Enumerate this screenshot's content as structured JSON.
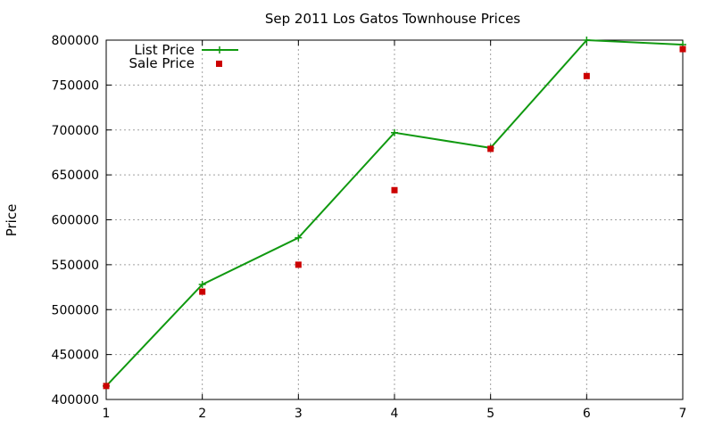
{
  "chart_data": {
    "type": "line",
    "title": "Sep 2011 Los Gatos Townhouse Prices",
    "xlabel": "",
    "ylabel": "Price",
    "xlim": [
      1,
      7
    ],
    "ylim": [
      400000,
      800000
    ],
    "x_ticks": [
      "1",
      "2",
      "3",
      "4",
      "5",
      "6",
      "7"
    ],
    "y_ticks": [
      "400000",
      "450000",
      "500000",
      "550000",
      "600000",
      "650000",
      "700000",
      "750000",
      "800000"
    ],
    "grid": true,
    "legend_position": "top-left",
    "x": [
      1,
      2,
      3,
      4,
      5,
      6,
      7
    ],
    "series": [
      {
        "name": "List Price",
        "style": "line-with-plus-markers",
        "color": "#109910",
        "values": [
          415000,
          528000,
          580000,
          697000,
          680000,
          800000,
          795000
        ]
      },
      {
        "name": "Sale Price",
        "style": "square-markers",
        "color": "#cc0000",
        "values": [
          415000,
          520000,
          550000,
          633000,
          679000,
          760000,
          790000
        ]
      }
    ]
  }
}
